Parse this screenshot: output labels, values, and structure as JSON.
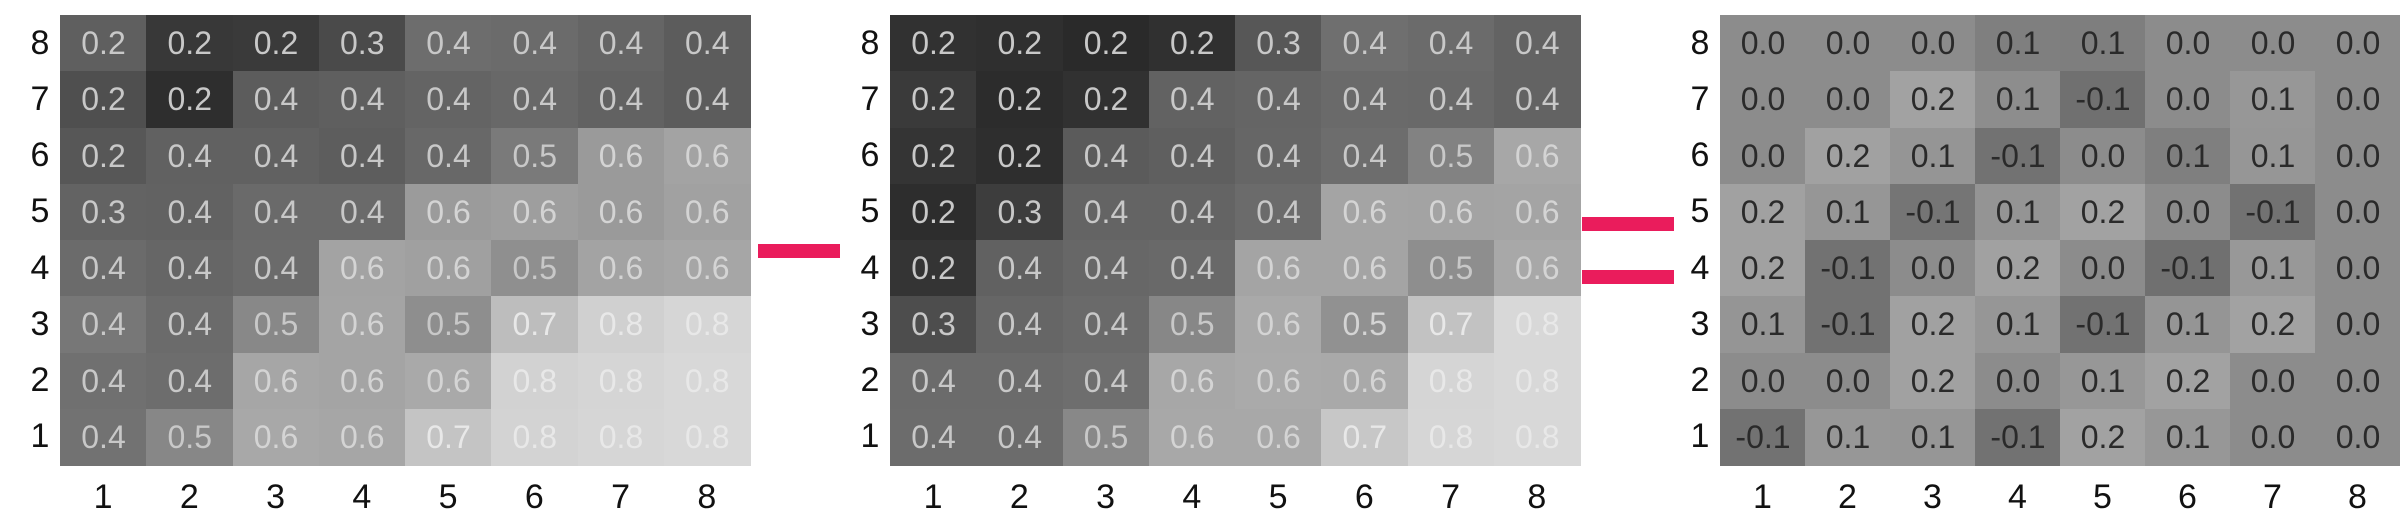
{
  "operators": {
    "minus": "minus",
    "equals": "equals"
  },
  "colors": {
    "operator": "#ea1c5c"
  },
  "grids": [
    {
      "id": "left",
      "row_labels": [
        "8",
        "7",
        "6",
        "5",
        "4",
        "3",
        "2",
        "1"
      ],
      "col_labels": [
        "1",
        "2",
        "3",
        "4",
        "5",
        "6",
        "7",
        "8"
      ],
      "cells": [
        [
          "0.2",
          "0.2",
          "0.2",
          "0.3",
          "0.4",
          "0.4",
          "0.4",
          "0.4"
        ],
        [
          "0.2",
          "0.2",
          "0.4",
          "0.4",
          "0.4",
          "0.4",
          "0.4",
          "0.4"
        ],
        [
          "0.2",
          "0.4",
          "0.4",
          "0.4",
          "0.4",
          "0.5",
          "0.6",
          "0.6"
        ],
        [
          "0.3",
          "0.4",
          "0.4",
          "0.4",
          "0.6",
          "0.6",
          "0.6",
          "0.6"
        ],
        [
          "0.4",
          "0.4",
          "0.4",
          "0.6",
          "0.6",
          "0.5",
          "0.6",
          "0.6"
        ],
        [
          "0.4",
          "0.4",
          "0.5",
          "0.6",
          "0.5",
          "0.7",
          "0.8",
          "0.8"
        ],
        [
          "0.4",
          "0.4",
          "0.6",
          "0.6",
          "0.6",
          "0.8",
          "0.8",
          "0.8"
        ],
        [
          "0.4",
          "0.5",
          "0.6",
          "0.6",
          "0.7",
          "0.8",
          "0.8",
          "0.8"
        ]
      ]
    },
    {
      "id": "middle",
      "row_labels": [
        "8",
        "7",
        "6",
        "5",
        "4",
        "3",
        "2",
        "1"
      ],
      "col_labels": [
        "1",
        "2",
        "3",
        "4",
        "5",
        "6",
        "7",
        "8"
      ],
      "cells": [
        [
          "0.2",
          "0.2",
          "0.2",
          "0.2",
          "0.3",
          "0.4",
          "0.4",
          "0.4"
        ],
        [
          "0.2",
          "0.2",
          "0.2",
          "0.4",
          "0.4",
          "0.4",
          "0.4",
          "0.4"
        ],
        [
          "0.2",
          "0.2",
          "0.4",
          "0.4",
          "0.4",
          "0.4",
          "0.5",
          "0.6"
        ],
        [
          "0.2",
          "0.3",
          "0.4",
          "0.4",
          "0.4",
          "0.6",
          "0.6",
          "0.6"
        ],
        [
          "0.2",
          "0.4",
          "0.4",
          "0.4",
          "0.6",
          "0.6",
          "0.5",
          "0.6"
        ],
        [
          "0.3",
          "0.4",
          "0.4",
          "0.5",
          "0.6",
          "0.5",
          "0.7",
          "0.8"
        ],
        [
          "0.4",
          "0.4",
          "0.4",
          "0.6",
          "0.6",
          "0.6",
          "0.8",
          "0.8"
        ],
        [
          "0.4",
          "0.4",
          "0.5",
          "0.6",
          "0.6",
          "0.7",
          "0.8",
          "0.8"
        ]
      ]
    },
    {
      "id": "right",
      "row_labels": [
        "8",
        "7",
        "6",
        "5",
        "4",
        "3",
        "2",
        "1"
      ],
      "col_labels": [
        "1",
        "2",
        "3",
        "4",
        "5",
        "6",
        "7",
        "8"
      ],
      "cells": [
        [
          "0.0",
          "0.0",
          "0.0",
          "0.1",
          "0.1",
          "0.0",
          "0.0",
          "0.0"
        ],
        [
          "0.0",
          "0.0",
          "0.2",
          "0.1",
          "-0.1",
          "0.0",
          "0.1",
          "0.0"
        ],
        [
          "0.0",
          "0.2",
          "0.1",
          "-0.1",
          "0.0",
          "0.1",
          "0.1",
          "0.0"
        ],
        [
          "0.2",
          "0.1",
          "-0.1",
          "0.1",
          "0.2",
          "0.0",
          "-0.1",
          "0.0"
        ],
        [
          "0.2",
          "-0.1",
          "0.0",
          "0.2",
          "0.0",
          "-0.1",
          "0.1",
          "0.0"
        ],
        [
          "0.1",
          "-0.1",
          "0.2",
          "0.1",
          "-0.1",
          "0.1",
          "0.2",
          "0.0"
        ],
        [
          "0.0",
          "0.0",
          "0.2",
          "0.0",
          "0.1",
          "0.2",
          "0.0",
          "0.0"
        ],
        [
          "-0.1",
          "0.1",
          "0.1",
          "-0.1",
          "0.2",
          "0.1",
          "0.0",
          "0.0"
        ]
      ]
    }
  ]
}
